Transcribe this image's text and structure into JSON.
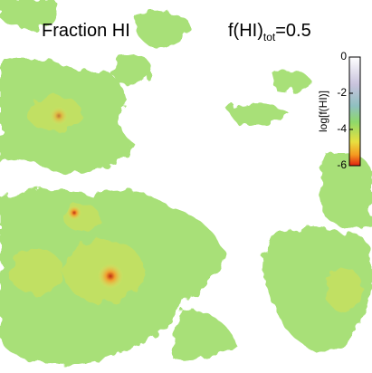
{
  "title": "Fraction HI",
  "annotation": {
    "main": "f(HI)",
    "subscript": "tot",
    "value": "=0.5"
  },
  "colorbar": {
    "label": "log[f(HI)]",
    "ticks": [
      0,
      -2,
      -4,
      -6
    ],
    "range": [
      0,
      -6
    ]
  }
}
